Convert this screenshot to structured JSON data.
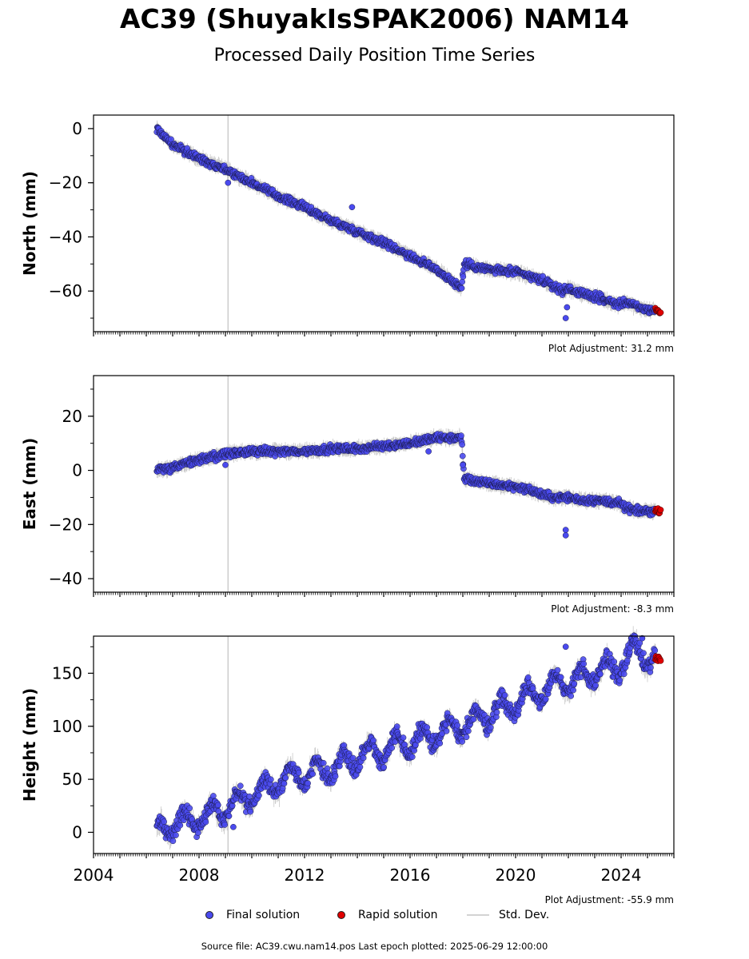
{
  "title": "AC39 (ShuyakIsSPAK2006) NAM14",
  "subtitle": "Processed Daily Position Time Series",
  "colors": {
    "final": "#4a4aee",
    "rapid": "#e00000",
    "std_dev": "#c8c8c8",
    "vline": "#cccccc"
  },
  "legend": {
    "final": "Final solution",
    "rapid": "Rapid solution",
    "std": "Std. Dev."
  },
  "footer": "Source file: AC39.cwu.nam14.pos  Last epoch plotted: 2025-06-29 12:00:00",
  "chart_data": [
    {
      "type": "scatter",
      "ylabel": "North (mm)",
      "adjustment": "Plot Adjustment: 31.2 mm",
      "xlim": [
        2004,
        2026
      ],
      "ylim": [
        -75,
        5
      ],
      "yticks": [
        0,
        -20,
        -40,
        -60
      ],
      "xticks": [
        2004,
        2008,
        2012,
        2016,
        2020,
        2024
      ],
      "show_xtick_labels": false,
      "vline_x": 2009.1,
      "series_final": {
        "x": [
          2006.4,
          2007.0,
          2008.0,
          2009.0,
          2010.0,
          2011.0,
          2012.0,
          2013.0,
          2014.0,
          2015.0,
          2016.0,
          2017.0,
          2017.95,
          2018.05,
          2018.5,
          2019.0,
          2020.0,
          2021.0,
          2021.8,
          2022.0,
          2022.5,
          2023.0,
          2023.9,
          2024.2,
          2024.6,
          2025.0,
          2025.3
        ],
        "y": [
          0,
          -6,
          -11,
          -15,
          -20,
          -25,
          -29,
          -34,
          -38,
          -42,
          -47,
          -52,
          -59,
          -50,
          -51,
          -52,
          -53,
          -56,
          -60,
          -59,
          -61,
          -62,
          -65,
          -64,
          -66,
          -67,
          -67
        ]
      },
      "series_rapid": {
        "x": [
          2025.3,
          2025.5
        ],
        "y": [
          -67,
          -68
        ]
      },
      "outliers": {
        "x": [
          2013.8,
          2021.9,
          2021.95,
          2009.1
        ],
        "y": [
          -29,
          -70,
          -66,
          -20
        ]
      }
    },
    {
      "type": "scatter",
      "ylabel": "East (mm)",
      "adjustment": "Plot Adjustment: -8.3 mm",
      "xlim": [
        2004,
        2026
      ],
      "ylim": [
        -45,
        35
      ],
      "yticks": [
        20,
        0,
        -20,
        -40
      ],
      "xticks": [
        2004,
        2008,
        2012,
        2016,
        2020,
        2024
      ],
      "show_xtick_labels": false,
      "vline_x": 2009.1,
      "series_final": {
        "x": [
          2006.4,
          2007.0,
          2008.0,
          2009.0,
          2010.0,
          2011.0,
          2012.0,
          2013.0,
          2014.0,
          2015.0,
          2016.0,
          2016.5,
          2017.0,
          2017.95,
          2018.05,
          2018.5,
          2019.0,
          2020.0,
          2020.5,
          2021.0,
          2021.5,
          2022.0,
          2022.5,
          2023.0,
          2023.9,
          2024.2,
          2024.6,
          2025.0,
          2025.3
        ],
        "y": [
          0,
          1,
          4,
          6,
          7,
          7,
          7,
          8,
          8,
          9,
          10,
          11,
          12,
          12,
          -3,
          -4,
          -5,
          -6,
          -7,
          -9,
          -10,
          -10,
          -11,
          -11,
          -12,
          -14,
          -15,
          -15,
          -15
        ]
      },
      "series_rapid": {
        "x": [
          2025.3,
          2025.5
        ],
        "y": [
          -15,
          -15
        ]
      },
      "outliers": {
        "x": [
          2021.9,
          2021.9,
          2018.0,
          2009.0,
          2016.7
        ],
        "y": [
          -22,
          -24,
          2,
          2,
          7
        ]
      }
    },
    {
      "type": "scatter",
      "ylabel": "Height (mm)",
      "adjustment": "Plot Adjustment: -55.9 mm",
      "xlim": [
        2004,
        2026
      ],
      "ylim": [
        -20,
        185
      ],
      "yticks": [
        0,
        50,
        100,
        150
      ],
      "xticks": [
        2004,
        2008,
        2012,
        2016,
        2020,
        2024
      ],
      "show_xtick_labels": true,
      "vline_x": 2009.1,
      "series_final": {
        "x": [
          2006.4,
          2007.0,
          2008.0,
          2009.0,
          2010.0,
          2011.0,
          2012.0,
          2013.0,
          2014.0,
          2015.0,
          2016.0,
          2017.0,
          2018.0,
          2019.0,
          2020.0,
          2021.0,
          2022.0,
          2023.0,
          2024.0,
          2024.5,
          2025.0,
          2025.3
        ],
        "y": [
          0,
          8,
          14,
          22,
          35,
          48,
          55,
          60,
          72,
          78,
          84,
          92,
          100,
          112,
          122,
          135,
          142,
          150,
          158,
          172,
          165,
          163
        ]
      },
      "series_rapid": {
        "x": [
          2025.3,
          2025.5
        ],
        "y": [
          163,
          165
        ]
      },
      "outliers": {
        "x": [
          2021.9,
          2024.8,
          2009.3
        ],
        "y": [
          175,
          183,
          5
        ]
      }
    }
  ]
}
